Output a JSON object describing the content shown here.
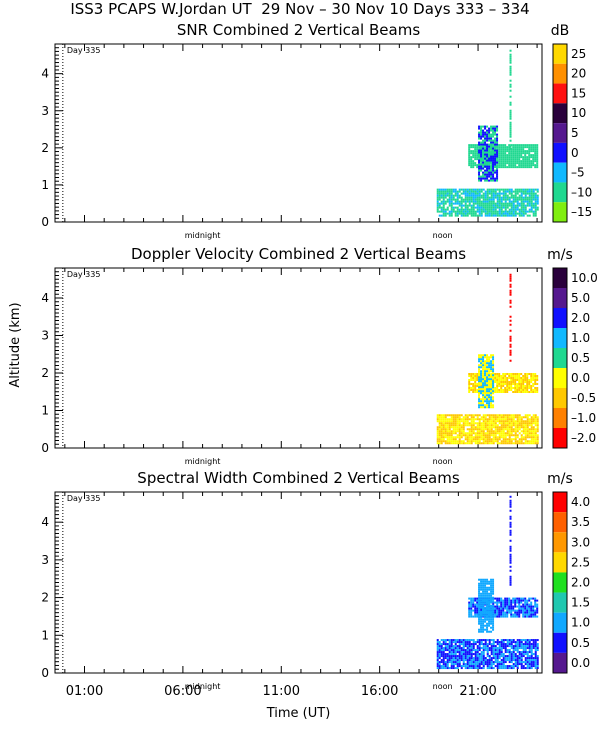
{
  "page_title": "ISS3 PCAPS W.Jordan UT  29 Nov – 30 Nov 10 Days 333 – 334",
  "shared": {
    "ylabel": "Altitude (km)",
    "xlabel": "Time (UT)",
    "x_tick_labels": [
      "01:00",
      "06:00",
      "11:00",
      "16:00",
      "21:00"
    ],
    "x_tick_values_hours": [
      1,
      6,
      11,
      16,
      21
    ],
    "x_range_hours": [
      -0.5,
      24.25
    ],
    "y_tick_labels": [
      "0",
      "1",
      "2",
      "3",
      "4"
    ],
    "y_range_km": [
      0,
      4.8
    ],
    "day_marker": "Day 335",
    "midnight_label": "midnight",
    "noon_label": "noon",
    "midnight_hour": 7,
    "noon_hour": 19.2
  },
  "chart_data": [
    {
      "type": "heatmap",
      "title": "SNR Combined 2 Vertical Beams",
      "colorbar_unit": "dB",
      "colorbar_labels": [
        "25",
        "20",
        "15",
        "10",
        "5",
        "0",
        "–5",
        "–10",
        "–15"
      ],
      "colorbar_colors": [
        "#ffd800",
        "#ff9000",
        "#ff1010",
        "#2a003c",
        "#55188f",
        "#1010ff",
        "#10b8ff",
        "#20d890",
        "#80ee10"
      ],
      "echo_regions": [
        {
          "name": "boundary-layer echoes",
          "t_start": 18.9,
          "t_end": 24.0,
          "alt_min_km": 0.15,
          "alt_max_km": 0.9,
          "dominant_values_db": [
            -12,
            -8,
            -4
          ]
        },
        {
          "name": "elevated layer",
          "t_start": 20.5,
          "t_end": 24.0,
          "alt_min_km": 1.5,
          "alt_max_km": 2.1,
          "dominant_values_db": [
            -12,
            -8
          ]
        },
        {
          "name": "plume",
          "t_start": 21.0,
          "t_end": 22.0,
          "alt_min_km": 1.1,
          "alt_max_km": 2.6,
          "dominant_values_db": [
            -10,
            0
          ]
        },
        {
          "name": "tall spike",
          "t_start": 22.6,
          "t_end": 22.7,
          "alt_min_km": 1.9,
          "alt_max_km": 4.7,
          "dominant_values_db": [
            -10
          ]
        }
      ]
    },
    {
      "type": "heatmap",
      "title": "Doppler Velocity Combined 2 Vertical Beams",
      "colorbar_unit": "m/s",
      "colorbar_labels": [
        "10.0",
        "5.0",
        "2.0",
        "1.0",
        "0.5",
        "0.0",
        "–0.5",
        "–1.0",
        "–2.0"
      ],
      "colorbar_colors": [
        "#2a003c",
        "#55188f",
        "#1010ff",
        "#10b8ff",
        "#20d890",
        "#ffff00",
        "#ffc800",
        "#ff8000",
        "#ff0000"
      ],
      "echo_regions": [
        {
          "name": "boundary-layer echoes",
          "t_start": 18.9,
          "t_end": 24.0,
          "alt_min_km": 0.15,
          "alt_max_km": 0.9,
          "dominant_values_ms": [
            0.0,
            -0.5
          ]
        },
        {
          "name": "elevated layer",
          "t_start": 20.5,
          "t_end": 24.0,
          "alt_min_km": 1.5,
          "alt_max_km": 2.0,
          "dominant_values_ms": [
            0.0,
            -0.5
          ]
        },
        {
          "name": "plume",
          "t_start": 21.0,
          "t_end": 21.8,
          "alt_min_km": 1.1,
          "alt_max_km": 2.5,
          "dominant_values_ms": [
            1.0,
            0.0
          ]
        },
        {
          "name": "high returns",
          "t_start": 22.6,
          "t_end": 22.7,
          "alt_min_km": 2.3,
          "alt_max_km": 4.7,
          "dominant_values_ms": [
            -2.0
          ]
        }
      ]
    },
    {
      "type": "heatmap",
      "title": "Spectral Width Combined 2 Vertical Beams",
      "colorbar_unit": "m/s",
      "colorbar_labels": [
        "4.0",
        "3.5",
        "3.0",
        "2.5",
        "2.0",
        "1.5",
        "1.0",
        "0.5",
        "0.0"
      ],
      "colorbar_colors": [
        "#ff0000",
        "#ff6000",
        "#ff9800",
        "#ffd800",
        "#20e020",
        "#20c8b0",
        "#10a8ff",
        "#1010ff",
        "#55188f"
      ],
      "echo_regions": [
        {
          "name": "boundary-layer echoes",
          "t_start": 18.9,
          "t_end": 24.0,
          "alt_min_km": 0.15,
          "alt_max_km": 0.9,
          "dominant_values_ms": [
            0.5,
            1.0
          ]
        },
        {
          "name": "elevated layer",
          "t_start": 20.5,
          "t_end": 24.0,
          "alt_min_km": 1.5,
          "alt_max_km": 2.0,
          "dominant_values_ms": [
            0.5,
            1.0
          ]
        },
        {
          "name": "plume",
          "t_start": 21.0,
          "t_end": 21.8,
          "alt_min_km": 1.1,
          "alt_max_km": 2.5,
          "dominant_values_ms": [
            1.0
          ]
        },
        {
          "name": "high returns",
          "t_start": 22.6,
          "t_end": 22.7,
          "alt_min_km": 2.3,
          "alt_max_km": 4.7,
          "dominant_values_ms": [
            0.5
          ]
        }
      ]
    }
  ]
}
